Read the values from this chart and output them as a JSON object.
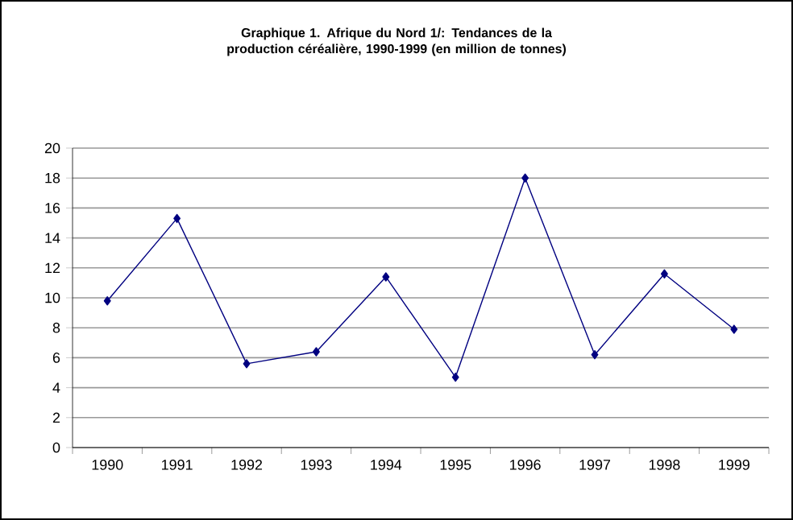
{
  "chart_data": {
    "type": "line",
    "title": "Graphique 1. Afrique du Nord 1/: Tendances de la production céréalière, 1990-1999 (en million de tonnes)",
    "categories": [
      "1990",
      "1991",
      "1992",
      "1993",
      "1994",
      "1995",
      "1996",
      "1997",
      "1998",
      "1999"
    ],
    "values": [
      9.8,
      15.3,
      5.6,
      6.4,
      11.4,
      4.7,
      18.0,
      6.2,
      11.6,
      7.9
    ],
    "color": "#000080",
    "marker": "diamond",
    "line_style": "solid",
    "ylim": [
      0,
      20
    ],
    "yticks": [
      0,
      2,
      4,
      6,
      8,
      10,
      12,
      14,
      16,
      18,
      20
    ],
    "grid": "y"
  }
}
